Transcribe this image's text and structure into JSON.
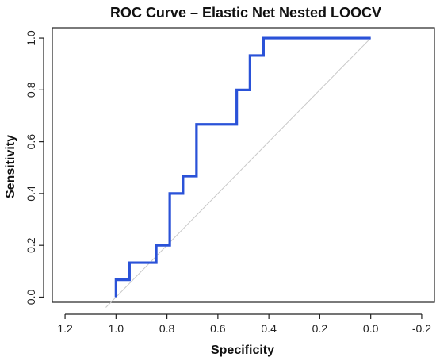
{
  "chart_data": {
    "type": "line",
    "title": "ROC Curve – Elastic Net Nested LOOCV",
    "xlabel": "Specificity",
    "ylabel": "Sensitivity",
    "x_reversed": true,
    "xlim": [
      1.25,
      -0.25
    ],
    "ylim": [
      -0.02,
      1.04
    ],
    "x_ticks": [
      1.2,
      1.0,
      0.8,
      0.6,
      0.4,
      0.2,
      0.0,
      -0.2
    ],
    "x_tick_labels": [
      "1.2",
      "1.0",
      "0.8",
      "0.6",
      "0.4",
      "0.2",
      "0.0",
      "-0.2"
    ],
    "y_ticks": [
      0.0,
      0.2,
      0.4,
      0.6,
      0.8,
      1.0
    ],
    "y_tick_labels": [
      "0.0",
      "0.2",
      "0.4",
      "0.6",
      "0.8",
      "1.0"
    ],
    "grid": false,
    "reference_line": {
      "x": [
        1.04,
        0.0
      ],
      "y": [
        -0.04,
        1.0
      ],
      "color": "#c8c8c8"
    },
    "series": [
      {
        "color": "#2a52d8",
        "x": [
          1.0,
          1.0,
          0.947,
          0.947,
          0.842,
          0.842,
          0.789,
          0.789,
          0.737,
          0.737,
          0.684,
          0.684,
          0.526,
          0.526,
          0.474,
          0.474,
          0.421,
          0.421,
          0.0
        ],
        "y": [
          0.0,
          0.067,
          0.067,
          0.133,
          0.133,
          0.2,
          0.2,
          0.4,
          0.4,
          0.467,
          0.467,
          0.667,
          0.667,
          0.8,
          0.8,
          0.933,
          0.933,
          1.0,
          1.0
        ]
      }
    ]
  }
}
